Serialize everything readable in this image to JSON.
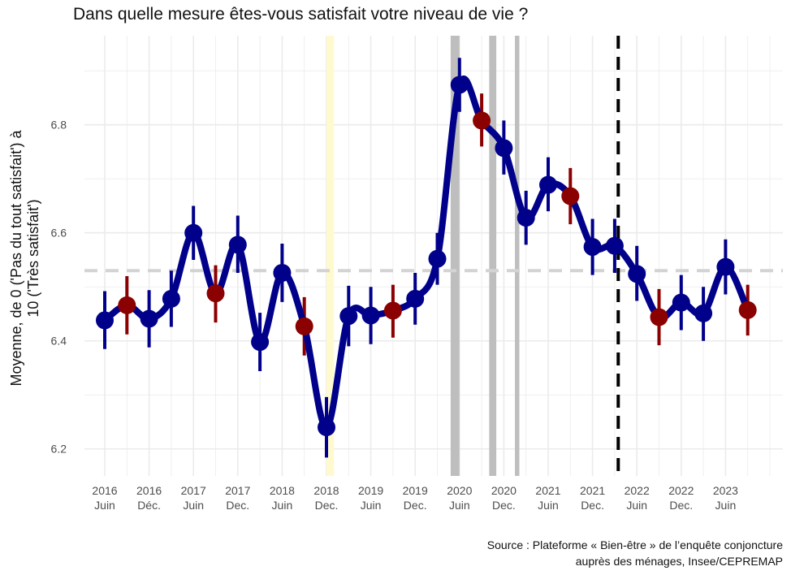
{
  "chart_data": {
    "type": "line",
    "title": "Dans quelle mesure êtes-vous satisfait votre niveau de vie ?",
    "ylabel_line1": "Moyenne, de 0 ('Pas du tout satisfait') à",
    "ylabel_line2": "10 ('Très satisfait')",
    "ylim": [
      6.15,
      6.965
    ],
    "yticks": [
      6.2,
      6.4,
      6.6,
      6.8
    ],
    "ytick_labels": [
      "6.2",
      "6.4",
      "6.6",
      "6.8"
    ],
    "xticks": [
      {
        "year": "2016",
        "period": "Juin"
      },
      {
        "year": "2016",
        "period": "Déc."
      },
      {
        "year": "2017",
        "period": "Juin"
      },
      {
        "year": "2017",
        "period": "Dec."
      },
      {
        "year": "2018",
        "period": "Juin"
      },
      {
        "year": "2018",
        "period": "Dec."
      },
      {
        "year": "2019",
        "period": "Juin"
      },
      {
        "year": "2019",
        "period": "Dec."
      },
      {
        "year": "2020",
        "period": "Juin"
      },
      {
        "year": "2020",
        "period": "Dec."
      },
      {
        "year": "2021",
        "period": "Juin"
      },
      {
        "year": "2021",
        "period": "Dec."
      },
      {
        "year": "2022",
        "period": "Juin"
      },
      {
        "year": "2022",
        "period": "Dec."
      },
      {
        "year": "2023",
        "period": "Juin"
      }
    ],
    "reference_mean": 6.53,
    "points": [
      {
        "t": 0.0,
        "value": 6.438,
        "low": 6.385,
        "high": 6.492,
        "highlight": false
      },
      {
        "t": 0.5,
        "value": 6.466,
        "low": 6.412,
        "high": 6.52,
        "highlight": true
      },
      {
        "t": 1.0,
        "value": 6.441,
        "low": 6.388,
        "high": 6.494,
        "highlight": false
      },
      {
        "t": 1.5,
        "value": 6.478,
        "low": 6.426,
        "high": 6.53,
        "highlight": false
      },
      {
        "t": 2.0,
        "value": 6.6,
        "low": 6.55,
        "high": 6.65,
        "highlight": false
      },
      {
        "t": 2.5,
        "value": 6.488,
        "low": 6.434,
        "high": 6.54,
        "highlight": true
      },
      {
        "t": 3.0,
        "value": 6.578,
        "low": 6.526,
        "high": 6.632,
        "highlight": false
      },
      {
        "t": 3.5,
        "value": 6.398,
        "low": 6.344,
        "high": 6.452,
        "highlight": false
      },
      {
        "t": 4.0,
        "value": 6.526,
        "low": 6.472,
        "high": 6.58,
        "highlight": false
      },
      {
        "t": 4.5,
        "value": 6.427,
        "low": 6.373,
        "high": 6.481,
        "highlight": true
      },
      {
        "t": 5.0,
        "value": 6.24,
        "low": 6.184,
        "high": 6.296,
        "highlight": false
      },
      {
        "t": 5.5,
        "value": 6.446,
        "low": 6.39,
        "high": 6.502,
        "highlight": false
      },
      {
        "t": 6.0,
        "value": 6.447,
        "low": 6.394,
        "high": 6.5,
        "highlight": false
      },
      {
        "t": 6.5,
        "value": 6.456,
        "low": 6.406,
        "high": 6.504,
        "highlight": true
      },
      {
        "t": 7.0,
        "value": 6.478,
        "low": 6.43,
        "high": 6.526,
        "highlight": false
      },
      {
        "t": 7.5,
        "value": 6.552,
        "low": 6.504,
        "high": 6.6,
        "highlight": false
      },
      {
        "t": 8.0,
        "value": 6.874,
        "low": 6.824,
        "high": 6.924,
        "highlight": false
      },
      {
        "t": 8.5,
        "value": 6.808,
        "low": 6.76,
        "high": 6.858,
        "highlight": true
      },
      {
        "t": 9.0,
        "value": 6.757,
        "low": 6.708,
        "high": 6.808,
        "highlight": false
      },
      {
        "t": 9.5,
        "value": 6.628,
        "low": 6.578,
        "high": 6.678,
        "highlight": false
      },
      {
        "t": 10.0,
        "value": 6.689,
        "low": 6.64,
        "high": 6.74,
        "highlight": false
      },
      {
        "t": 10.5,
        "value": 6.668,
        "low": 6.616,
        "high": 6.72,
        "highlight": true
      },
      {
        "t": 11.0,
        "value": 6.574,
        "low": 6.522,
        "high": 6.626,
        "highlight": false
      },
      {
        "t": 11.5,
        "value": 6.576,
        "low": 6.526,
        "high": 6.626,
        "highlight": false
      },
      {
        "t": 12.0,
        "value": 6.524,
        "low": 6.474,
        "high": 6.576,
        "highlight": false
      },
      {
        "t": 12.5,
        "value": 6.444,
        "low": 6.392,
        "high": 6.496,
        "highlight": true
      },
      {
        "t": 13.0,
        "value": 6.471,
        "low": 6.42,
        "high": 6.522,
        "highlight": false
      },
      {
        "t": 13.5,
        "value": 6.451,
        "low": 6.4,
        "high": 6.5,
        "highlight": false
      },
      {
        "t": 14.0,
        "value": 6.537,
        "low": 6.486,
        "high": 6.588,
        "highlight": false
      },
      {
        "t": 14.5,
        "value": 6.457,
        "low": 6.41,
        "high": 6.504,
        "highlight": true
      }
    ],
    "shaded_periods": [
      {
        "start": 5.0,
        "end": 5.17,
        "color": "#fffacd"
      },
      {
        "start": 7.8,
        "end": 8.0,
        "color": "#bebebe"
      },
      {
        "start": 8.67,
        "end": 8.83,
        "color": "#bebebe"
      },
      {
        "start": 9.25,
        "end": 9.35,
        "color": "#bebebe"
      }
    ],
    "event_line": 11.58,
    "colors": {
      "line": "#00008b",
      "point": "#00008b",
      "highlight_point": "#8b0000",
      "reference": "#d3d3d3",
      "event": "#000000",
      "grid": "#ebebeb"
    },
    "grid": true,
    "legend": "none"
  },
  "source_line1": "Source : Plateforme « Bien-être » de l’enquête conjoncture",
  "source_line2": "auprès des ménages, Insee/CEPREMAP"
}
